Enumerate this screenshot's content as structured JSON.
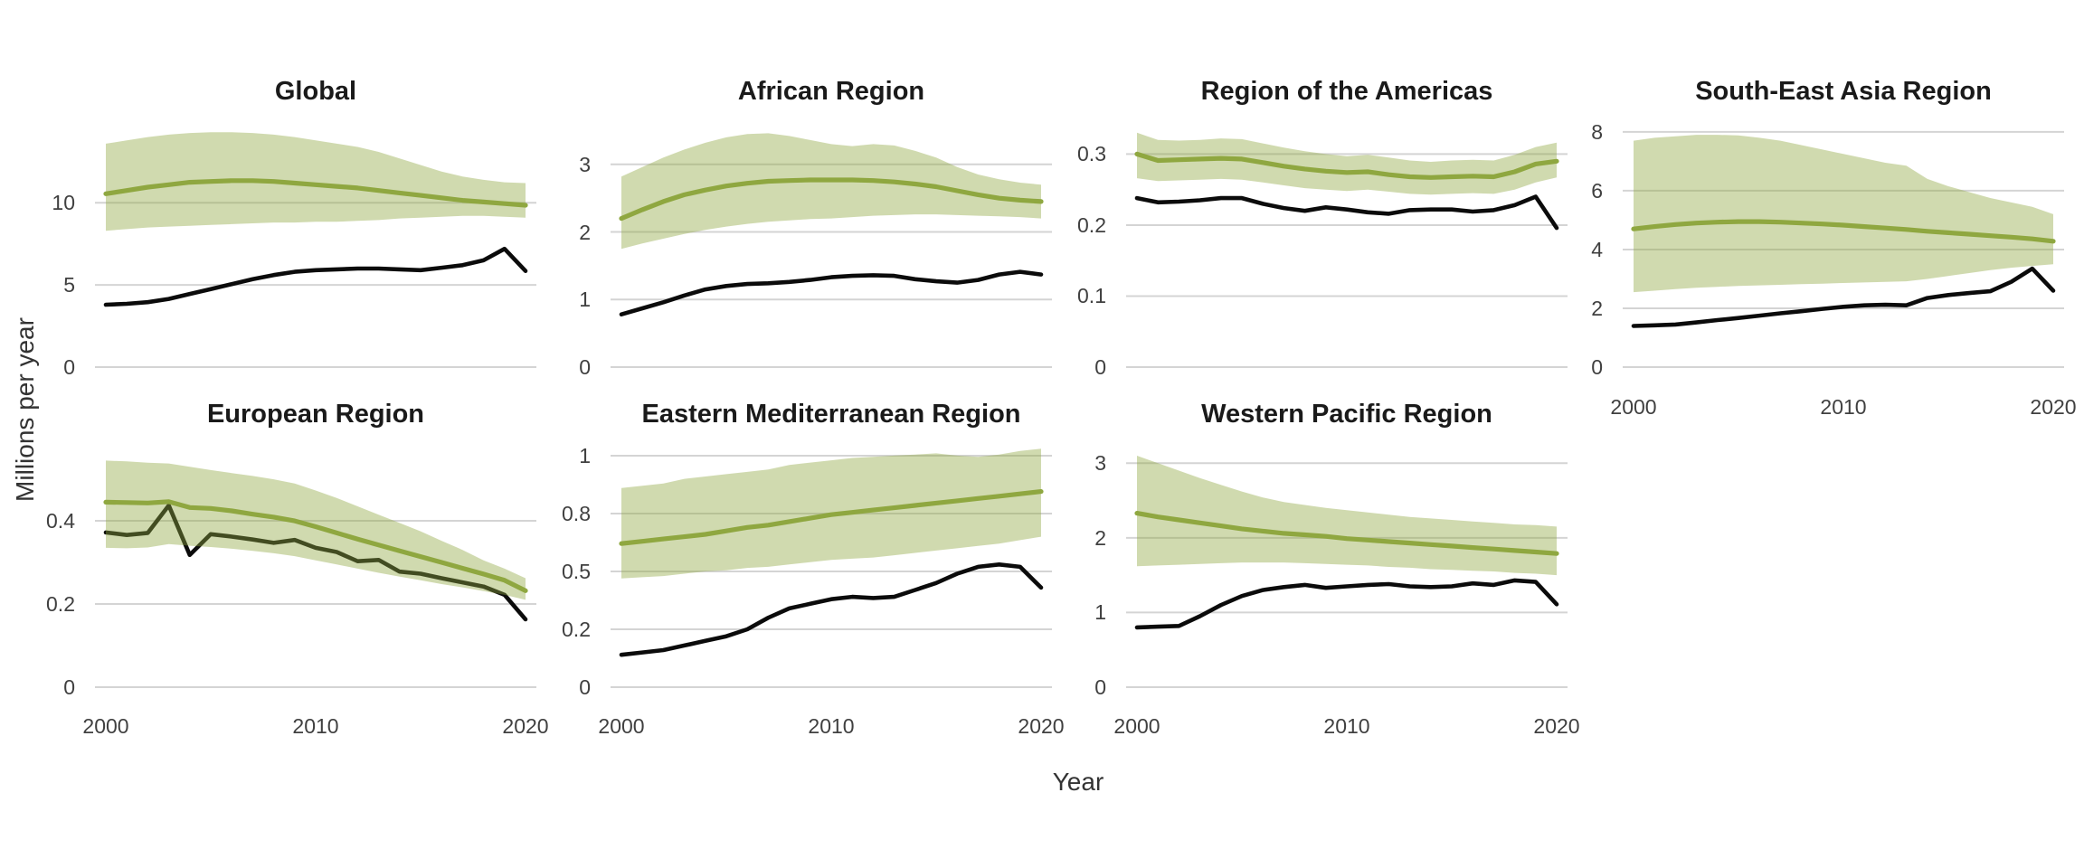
{
  "figure": {
    "y_axis_title": "Millions per year",
    "x_axis_title": "Year"
  },
  "styles": {
    "background": "#ffffff",
    "gridline_color": "#d4d4d4",
    "band_fill_rgba": "rgba(143,168,64,0.42)",
    "green_line_color": "#8fa840",
    "black_line_color": "#0b0b0b",
    "title_color": "#1a1a1a",
    "tick_color": "#404040",
    "axis_title_color": "#333333"
  },
  "chart_data": {
    "type": "line",
    "xlabel": "Year",
    "ylabel": "Millions per year",
    "x": [
      2000,
      2001,
      2002,
      2003,
      2004,
      2005,
      2006,
      2007,
      2008,
      2009,
      2010,
      2011,
      2012,
      2013,
      2014,
      2015,
      2016,
      2017,
      2018,
      2019,
      2020
    ],
    "x_tick_labels": [
      "2000",
      "2010",
      "2020"
    ],
    "legend": "none",
    "grid": "horizontal-only",
    "series_roles": {
      "black_line": "solid black line",
      "green_line": "solid green line with shaded uncertainty band",
      "band_lower": "lower edge of green shaded band",
      "band_upper": "upper edge of green shaded band"
    },
    "panels": [
      {
        "title": "Global",
        "grid_row": 0,
        "grid_col": 0,
        "show_x_axis": false,
        "y_max": 15.3,
        "y_ticks": {
          "positions": [
            0,
            5,
            10
          ],
          "labels": [
            "0",
            "5",
            "10"
          ]
        },
        "black_line": [
          3.8,
          3.85,
          3.95,
          4.15,
          4.45,
          4.75,
          5.05,
          5.35,
          5.6,
          5.8,
          5.9,
          5.95,
          6.0,
          6.0,
          5.95,
          5.9,
          6.05,
          6.2,
          6.5,
          7.2,
          5.85
        ],
        "green_line": [
          10.55,
          10.75,
          10.95,
          11.1,
          11.25,
          11.3,
          11.35,
          11.35,
          11.3,
          11.2,
          11.1,
          11.0,
          10.9,
          10.75,
          10.6,
          10.45,
          10.3,
          10.15,
          10.05,
          9.95,
          9.85
        ],
        "band_lower": [
          8.3,
          8.4,
          8.5,
          8.55,
          8.6,
          8.65,
          8.7,
          8.75,
          8.8,
          8.8,
          8.85,
          8.85,
          8.9,
          8.95,
          9.05,
          9.1,
          9.15,
          9.2,
          9.2,
          9.15,
          9.1
        ],
        "band_upper": [
          13.6,
          13.8,
          14.0,
          14.15,
          14.25,
          14.3,
          14.3,
          14.25,
          14.15,
          14.0,
          13.8,
          13.6,
          13.4,
          13.1,
          12.7,
          12.3,
          11.9,
          11.6,
          11.4,
          11.25,
          11.2
        ]
      },
      {
        "title": "African Region",
        "grid_row": 0,
        "grid_col": 1,
        "show_x_axis": false,
        "y_max": 3.72,
        "y_ticks": {
          "positions": [
            0,
            1,
            2,
            3
          ],
          "labels": [
            "0",
            "1",
            "2",
            "3"
          ]
        },
        "black_line": [
          0.78,
          0.87,
          0.96,
          1.06,
          1.15,
          1.2,
          1.23,
          1.24,
          1.26,
          1.29,
          1.33,
          1.35,
          1.36,
          1.35,
          1.3,
          1.27,
          1.25,
          1.29,
          1.37,
          1.41,
          1.37
        ],
        "green_line": [
          2.2,
          2.33,
          2.45,
          2.55,
          2.62,
          2.68,
          2.72,
          2.75,
          2.76,
          2.77,
          2.77,
          2.77,
          2.76,
          2.74,
          2.71,
          2.67,
          2.61,
          2.55,
          2.5,
          2.47,
          2.45
        ],
        "band_lower": [
          1.75,
          1.83,
          1.9,
          1.97,
          2.03,
          2.08,
          2.12,
          2.15,
          2.17,
          2.19,
          2.2,
          2.22,
          2.24,
          2.25,
          2.26,
          2.26,
          2.25,
          2.24,
          2.23,
          2.22,
          2.2
        ],
        "band_upper": [
          2.82,
          2.96,
          3.1,
          3.22,
          3.32,
          3.4,
          3.45,
          3.46,
          3.42,
          3.36,
          3.3,
          3.27,
          3.3,
          3.28,
          3.2,
          3.1,
          2.96,
          2.85,
          2.78,
          2.73,
          2.7
        ]
      },
      {
        "title": "Region of the Americas",
        "grid_row": 0,
        "grid_col": 2,
        "show_x_axis": false,
        "y_max": 0.354,
        "y_ticks": {
          "positions": [
            0,
            0.1,
            0.2,
            0.3
          ],
          "labels": [
            "0",
            "0.1",
            "0.2",
            "0.3"
          ]
        },
        "black_line": [
          0.238,
          0.232,
          0.233,
          0.235,
          0.238,
          0.238,
          0.23,
          0.224,
          0.22,
          0.225,
          0.222,
          0.218,
          0.216,
          0.221,
          0.222,
          0.222,
          0.219,
          0.221,
          0.228,
          0.24,
          0.196
        ],
        "green_line": [
          0.3,
          0.291,
          0.292,
          0.293,
          0.294,
          0.293,
          0.288,
          0.283,
          0.279,
          0.276,
          0.274,
          0.275,
          0.271,
          0.268,
          0.267,
          0.268,
          0.269,
          0.268,
          0.275,
          0.286,
          0.29
        ],
        "band_lower": [
          0.266,
          0.262,
          0.263,
          0.264,
          0.265,
          0.264,
          0.26,
          0.256,
          0.252,
          0.25,
          0.248,
          0.25,
          0.247,
          0.244,
          0.243,
          0.244,
          0.245,
          0.244,
          0.25,
          0.26,
          0.267
        ],
        "band_upper": [
          0.33,
          0.32,
          0.319,
          0.32,
          0.322,
          0.321,
          0.315,
          0.309,
          0.304,
          0.3,
          0.297,
          0.299,
          0.295,
          0.291,
          0.289,
          0.291,
          0.292,
          0.291,
          0.299,
          0.31,
          0.316
        ]
      },
      {
        "title": "South-East Asia Region",
        "grid_row": 0,
        "grid_col": 3,
        "show_x_axis": true,
        "y_max": 8.55,
        "y_ticks": {
          "positions": [
            0,
            2,
            4,
            6,
            8
          ],
          "labels": [
            "0",
            "2",
            "4",
            "6",
            "8"
          ]
        },
        "black_line": [
          1.4,
          1.42,
          1.45,
          1.52,
          1.6,
          1.67,
          1.75,
          1.83,
          1.9,
          1.98,
          2.05,
          2.1,
          2.12,
          2.1,
          2.35,
          2.45,
          2.52,
          2.58,
          2.9,
          3.35,
          2.6
        ],
        "green_line": [
          4.7,
          4.78,
          4.85,
          4.9,
          4.93,
          4.95,
          4.95,
          4.93,
          4.9,
          4.87,
          4.83,
          4.78,
          4.73,
          4.68,
          4.62,
          4.57,
          4.52,
          4.47,
          4.42,
          4.36,
          4.28
        ],
        "band_lower": [
          2.55,
          2.6,
          2.65,
          2.7,
          2.73,
          2.76,
          2.78,
          2.8,
          2.82,
          2.84,
          2.86,
          2.88,
          2.9,
          2.92,
          3.0,
          3.1,
          3.2,
          3.3,
          3.38,
          3.44,
          3.5
        ],
        "band_upper": [
          7.7,
          7.8,
          7.85,
          7.9,
          7.9,
          7.88,
          7.8,
          7.7,
          7.55,
          7.4,
          7.25,
          7.1,
          6.95,
          6.85,
          6.4,
          6.15,
          5.95,
          5.75,
          5.6,
          5.45,
          5.2
        ]
      },
      {
        "title": "European Region",
        "grid_row": 1,
        "grid_col": 0,
        "show_x_axis": true,
        "y_max": 0.598,
        "y_ticks": {
          "positions": [
            0,
            0.2,
            0.4
          ],
          "labels": [
            "0",
            "0.2",
            "0.4"
          ]
        },
        "black_line": [
          0.372,
          0.366,
          0.371,
          0.437,
          0.318,
          0.368,
          0.362,
          0.355,
          0.347,
          0.354,
          0.335,
          0.325,
          0.303,
          0.306,
          0.278,
          0.273,
          0.262,
          0.252,
          0.242,
          0.222,
          0.163
        ],
        "green_line": [
          0.445,
          0.444,
          0.443,
          0.446,
          0.432,
          0.43,
          0.424,
          0.416,
          0.409,
          0.4,
          0.386,
          0.371,
          0.356,
          0.342,
          0.328,
          0.314,
          0.3,
          0.286,
          0.272,
          0.257,
          0.232
        ],
        "band_lower": [
          0.335,
          0.334,
          0.336,
          0.344,
          0.34,
          0.337,
          0.333,
          0.328,
          0.322,
          0.315,
          0.305,
          0.295,
          0.285,
          0.275,
          0.266,
          0.257,
          0.248,
          0.24,
          0.231,
          0.222,
          0.21
        ],
        "band_upper": [
          0.545,
          0.543,
          0.54,
          0.538,
          0.53,
          0.522,
          0.515,
          0.508,
          0.5,
          0.49,
          0.473,
          0.455,
          0.435,
          0.415,
          0.395,
          0.375,
          0.352,
          0.33,
          0.305,
          0.285,
          0.262
        ]
      },
      {
        "title": "Eastern Mediterranean Region",
        "grid_row": 1,
        "grid_col": 1,
        "show_x_axis": true,
        "y_max": 1.074,
        "y_ticks": {
          "positions": [
            0,
            0.25,
            0.5,
            0.75,
            1
          ],
          "labels": [
            "0",
            "0.2",
            "0.5",
            "0.8",
            "1"
          ]
        },
        "black_line": [
          0.14,
          0.15,
          0.16,
          0.18,
          0.2,
          0.22,
          0.25,
          0.3,
          0.34,
          0.36,
          0.38,
          0.39,
          0.385,
          0.39,
          0.42,
          0.45,
          0.49,
          0.52,
          0.53,
          0.52,
          0.43
        ],
        "green_line": [
          0.62,
          0.63,
          0.64,
          0.65,
          0.66,
          0.675,
          0.69,
          0.7,
          0.715,
          0.73,
          0.745,
          0.755,
          0.765,
          0.775,
          0.785,
          0.795,
          0.805,
          0.815,
          0.825,
          0.835,
          0.845
        ],
        "band_lower": [
          0.47,
          0.475,
          0.48,
          0.49,
          0.5,
          0.505,
          0.515,
          0.52,
          0.53,
          0.54,
          0.55,
          0.555,
          0.56,
          0.57,
          0.58,
          0.59,
          0.6,
          0.61,
          0.62,
          0.635,
          0.65
        ],
        "band_upper": [
          0.86,
          0.87,
          0.88,
          0.9,
          0.91,
          0.92,
          0.93,
          0.94,
          0.96,
          0.97,
          0.98,
          0.99,
          0.995,
          1.0,
          1.005,
          1.01,
          1.0,
          0.995,
          1.005,
          1.02,
          1.03
        ]
      },
      {
        "title": "Western Pacific Region",
        "grid_row": 1,
        "grid_col": 2,
        "show_x_axis": true,
        "y_max": 3.33,
        "y_ticks": {
          "positions": [
            0,
            1,
            2,
            3
          ],
          "labels": [
            "0",
            "1",
            "2",
            "3"
          ]
        },
        "black_line": [
          0.8,
          0.81,
          0.82,
          0.95,
          1.1,
          1.22,
          1.3,
          1.34,
          1.37,
          1.33,
          1.35,
          1.37,
          1.38,
          1.35,
          1.34,
          1.35,
          1.39,
          1.37,
          1.43,
          1.41,
          1.11
        ],
        "green_line": [
          2.33,
          2.28,
          2.24,
          2.2,
          2.16,
          2.12,
          2.09,
          2.06,
          2.04,
          2.02,
          1.99,
          1.97,
          1.95,
          1.93,
          1.91,
          1.89,
          1.87,
          1.85,
          1.83,
          1.81,
          1.79
        ],
        "band_lower": [
          1.62,
          1.63,
          1.64,
          1.65,
          1.66,
          1.67,
          1.67,
          1.67,
          1.66,
          1.65,
          1.64,
          1.63,
          1.61,
          1.6,
          1.58,
          1.57,
          1.56,
          1.55,
          1.53,
          1.52,
          1.5
        ],
        "band_upper": [
          3.1,
          3.0,
          2.9,
          2.8,
          2.71,
          2.62,
          2.54,
          2.48,
          2.44,
          2.4,
          2.37,
          2.34,
          2.31,
          2.28,
          2.26,
          2.24,
          2.22,
          2.2,
          2.18,
          2.17,
          2.15
        ]
      }
    ]
  }
}
